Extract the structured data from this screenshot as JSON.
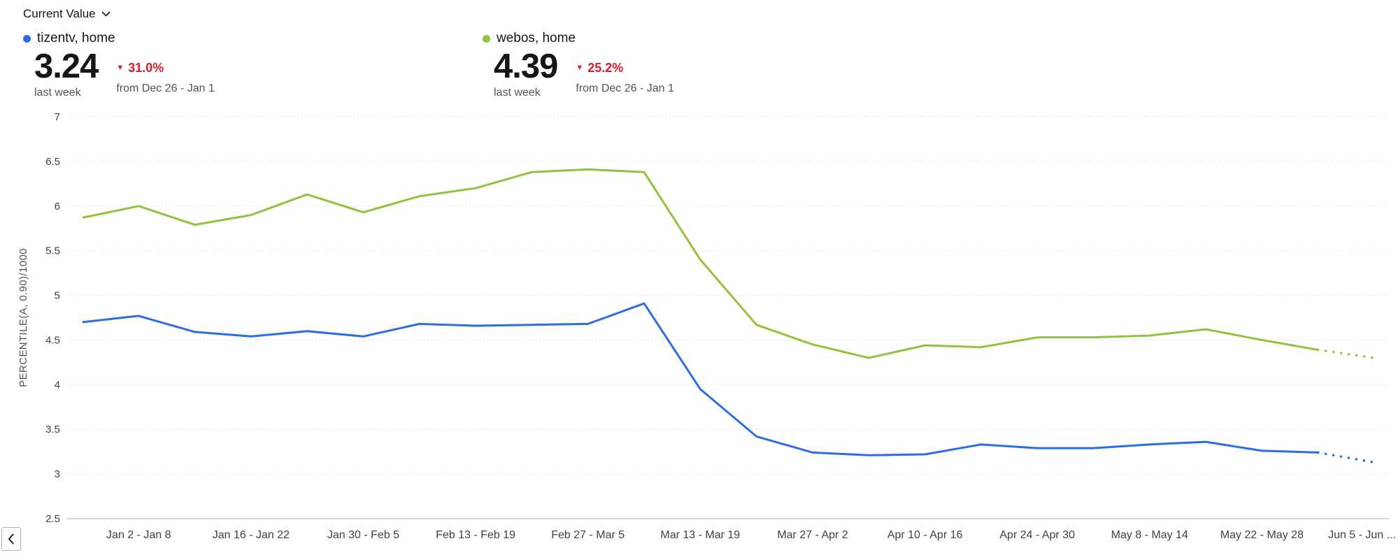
{
  "header": {
    "metric_selector": {
      "label": "Current Value"
    },
    "metrics": [
      {
        "series": "tizentv, home",
        "color": "#2b6de4",
        "value": "3.24",
        "period": "last week",
        "change_icon": "▼",
        "change": "31.0%",
        "change_color": "#da1e28",
        "comparison": "from Dec 26 - Jan 1"
      },
      {
        "series": "webos, home",
        "color": "#94c13d",
        "value": "4.39",
        "period": "last week",
        "change_icon": "▼",
        "change": "25.2%",
        "change_color": "#da1e28",
        "comparison": "from Dec 26 - Jan 1"
      }
    ]
  },
  "chart_data": {
    "type": "line",
    "title": "",
    "ylabel": "PERCENTILE(A, 0.90)/1000",
    "ylim": [
      2.5,
      7
    ],
    "ytick_step": 0.5,
    "grid": "horizontal-dashed",
    "x_unit": "week",
    "x_labels": [
      "Jan 2 - Jan 8",
      "Jan 16 - Jan 22",
      "Jan 30 - Feb 5",
      "Feb 13 - Feb 19",
      "Feb 27 - Mar 5",
      "Mar 13 - Mar 19",
      "Mar 27 - Apr 2",
      "Apr 10 - Apr 16",
      "Apr 24 - Apr 30",
      "May 8 - May 14",
      "May 22 - May 28",
      "Jun 5 - Jun ..."
    ],
    "x_label_indices": [
      1,
      3,
      5,
      7,
      9,
      11,
      13,
      15,
      17,
      19,
      21,
      23
    ],
    "dotted_tail_points": 1,
    "series": [
      {
        "id": "tizentv",
        "name": "tizentv, home",
        "color": "#2b6de4",
        "values": [
          4.7,
          4.77,
          4.59,
          4.54,
          4.6,
          4.54,
          4.68,
          4.66,
          4.67,
          4.68,
          4.91,
          3.95,
          3.42,
          3.24,
          3.21,
          3.22,
          3.33,
          3.29,
          3.29,
          3.33,
          3.36,
          3.26,
          3.24,
          3.13
        ]
      },
      {
        "id": "webos",
        "name": "webos, home",
        "color": "#94c13d",
        "values": [
          5.87,
          6.0,
          5.79,
          5.9,
          6.13,
          5.93,
          6.11,
          6.2,
          6.38,
          6.41,
          6.38,
          5.4,
          4.67,
          4.45,
          4.3,
          4.44,
          4.42,
          4.53,
          4.53,
          4.55,
          4.62,
          4.5,
          4.39,
          4.3
        ]
      }
    ]
  },
  "pager": {
    "direction": "left"
  }
}
